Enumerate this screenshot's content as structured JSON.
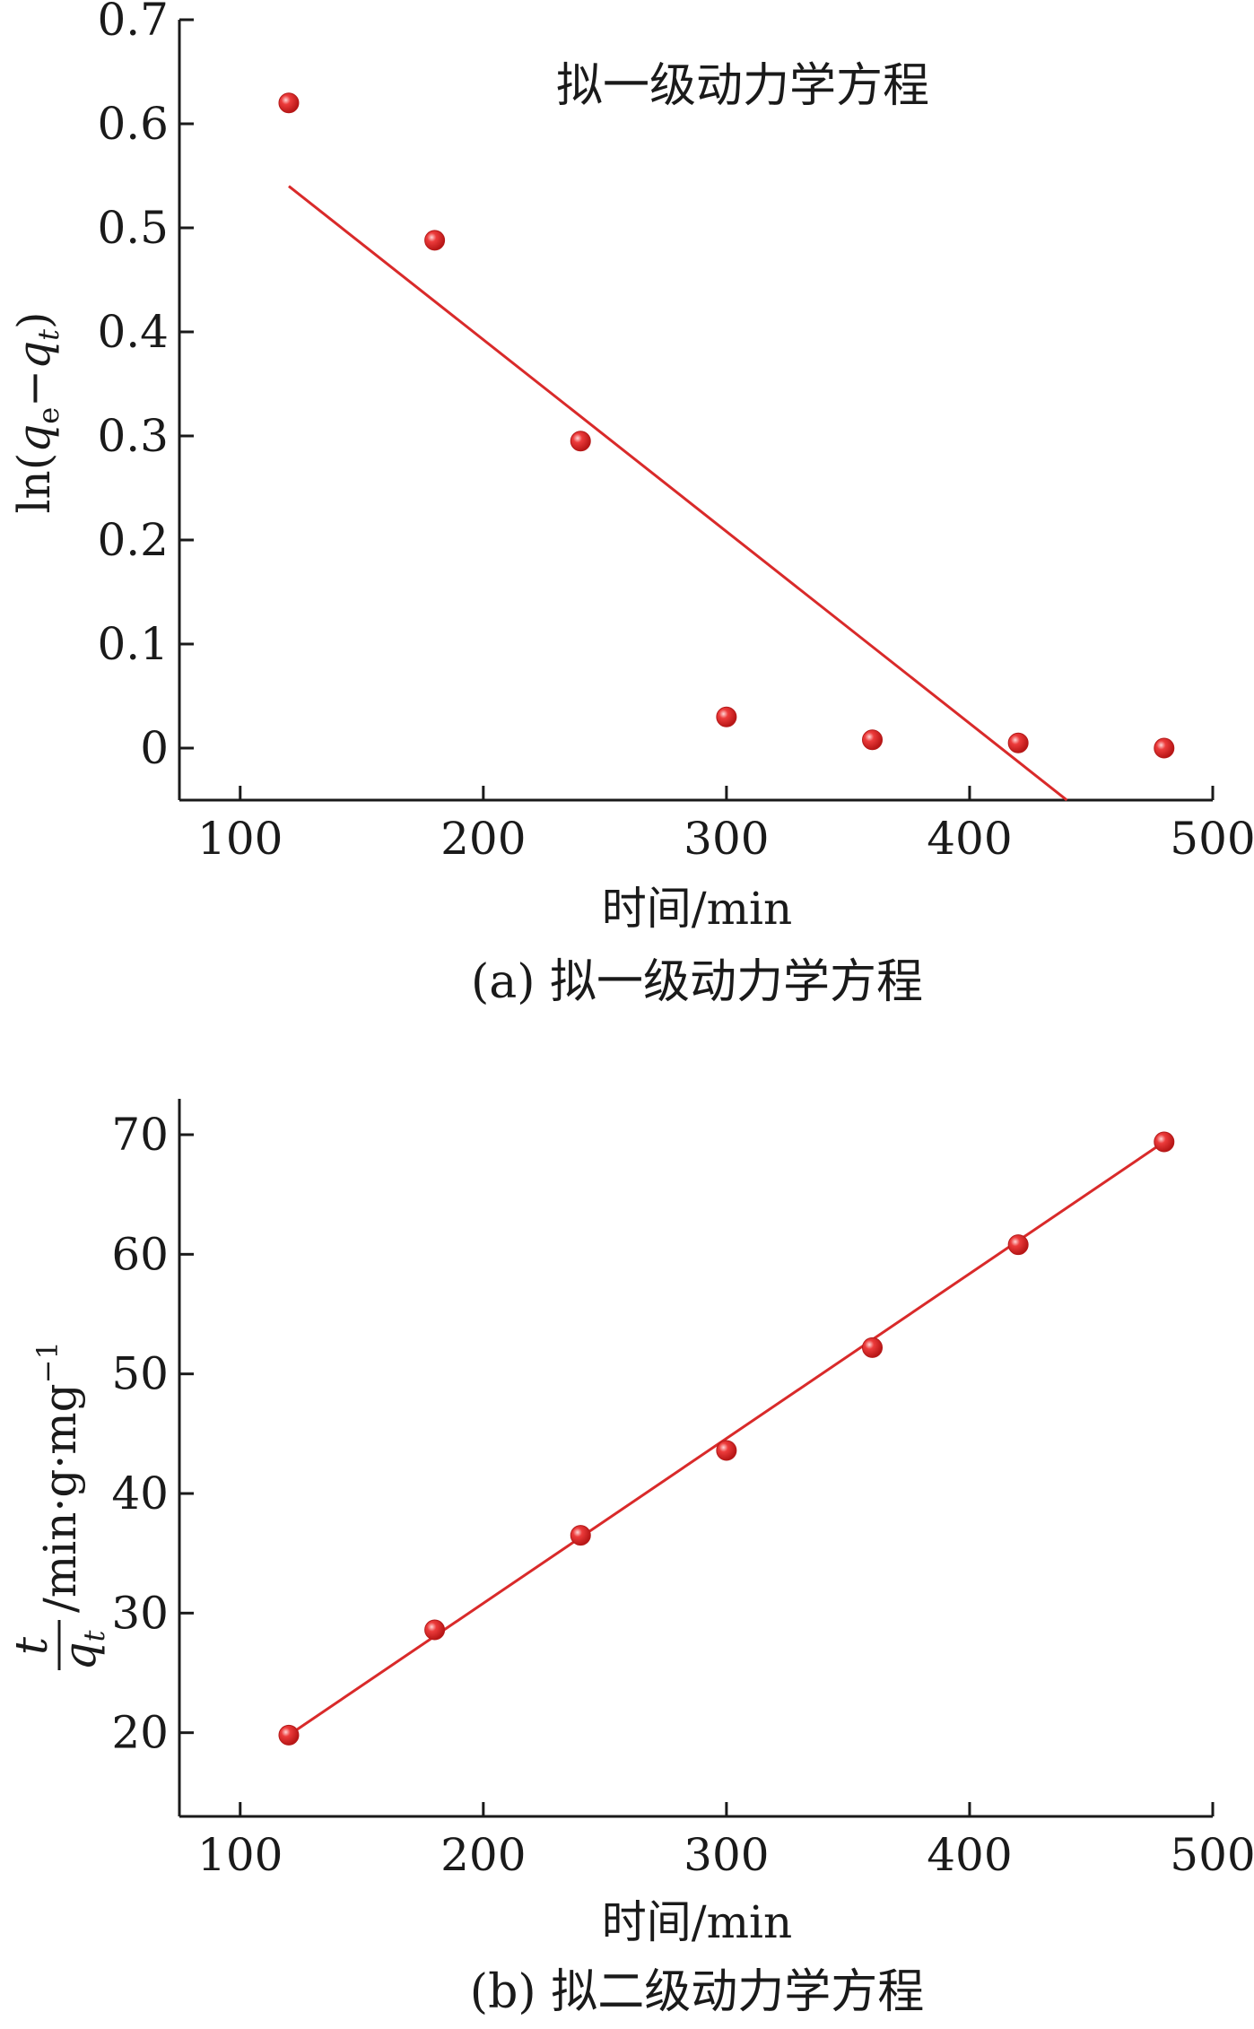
{
  "chart_data": [
    {
      "id": "a",
      "type": "scatter",
      "title": "拟一级动力学方程",
      "caption": "(a) 拟一级动力学方程",
      "xlabel": "时间/min",
      "ylabel_parts": {
        "pre": "ln(",
        "q1": "q",
        "sub1": "e",
        "mid": "−",
        "q2": "q",
        "sub2": "t",
        "post": ")"
      },
      "xlim": [
        75,
        500
      ],
      "ylim": [
        -0.05,
        0.7
      ],
      "xticks": [
        100,
        200,
        300,
        400,
        500
      ],
      "yticks": [
        0,
        0.1,
        0.2,
        0.3,
        0.4,
        0.5,
        0.6,
        0.7
      ],
      "ytick_labels": [
        "0",
        "0.1",
        "0.2",
        "0.3",
        "0.4",
        "0.5",
        "0.6",
        "0.7"
      ],
      "points": {
        "x": [
          120,
          180,
          240,
          300,
          360,
          420,
          480
        ],
        "y": [
          0.62,
          0.488,
          0.295,
          0.03,
          0.008,
          0.005,
          0.0
        ]
      },
      "fit_line": {
        "x": [
          120,
          440
        ],
        "y": [
          0.54,
          -0.05
        ]
      },
      "color": "#d92a2a"
    },
    {
      "id": "b",
      "type": "scatter",
      "title": "",
      "caption": "(b) 拟二级动力学方程",
      "xlabel": "时间/min",
      "ylabel_parts": {
        "num": "t",
        "den": "q",
        "den_sub": "t",
        "unit": "/min·g·mg",
        "unit_sup": "−1"
      },
      "xlim": [
        75,
        500
      ],
      "ylim": [
        13,
        73
      ],
      "xticks": [
        100,
        200,
        300,
        400,
        500
      ],
      "yticks": [
        20,
        30,
        40,
        50,
        60,
        70
      ],
      "ytick_labels": [
        "20",
        "30",
        "40",
        "50",
        "60",
        "70"
      ],
      "points": {
        "x": [
          120,
          180,
          240,
          300,
          360,
          420,
          480
        ],
        "y": [
          19.8,
          28.6,
          36.5,
          43.6,
          52.2,
          60.8,
          69.4
        ]
      },
      "fit_line": {
        "x": [
          120,
          480
        ],
        "y": [
          19.8,
          69.4
        ]
      },
      "color": "#d92a2a"
    }
  ]
}
